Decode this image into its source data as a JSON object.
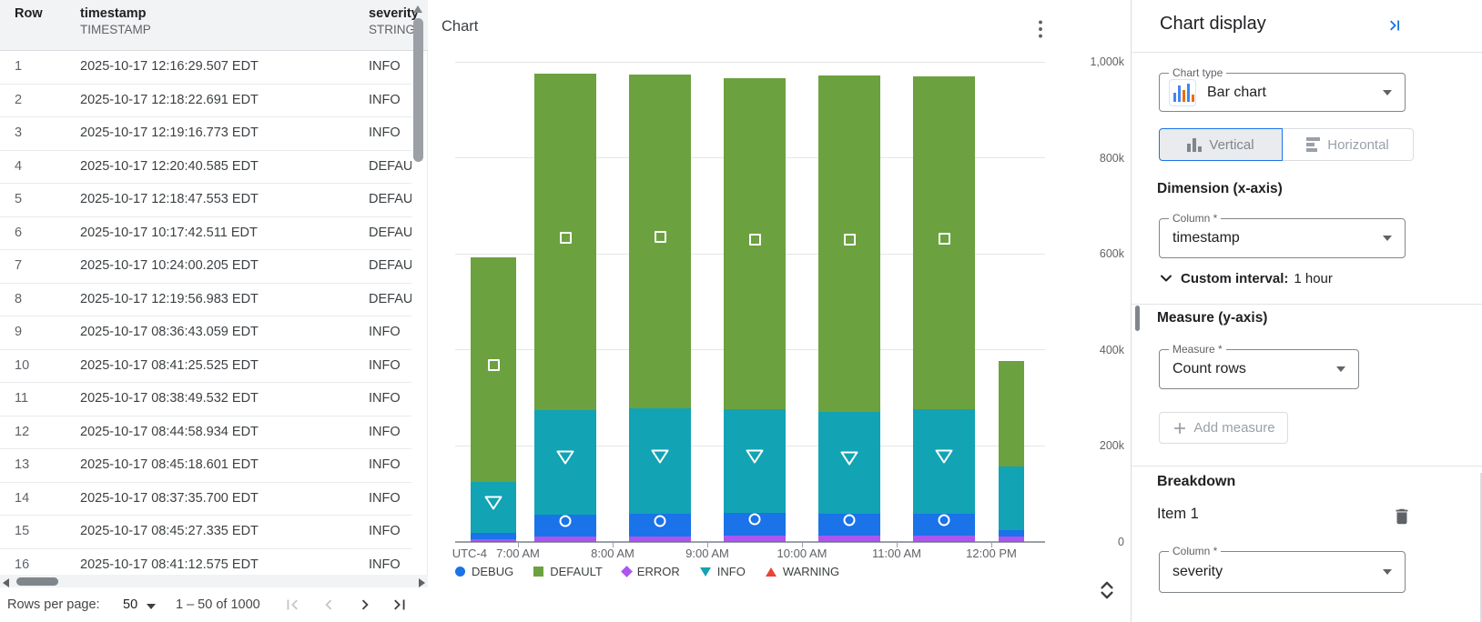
{
  "table": {
    "columns": [
      {
        "name": "Row",
        "type": ""
      },
      {
        "name": "timestamp",
        "type": "TIMESTAMP"
      },
      {
        "name": "severity",
        "type": "STRING"
      }
    ],
    "rows": [
      [
        "1",
        "2025-10-17 12:16:29.507 EDT",
        "INFO"
      ],
      [
        "2",
        "2025-10-17 12:18:22.691 EDT",
        "INFO"
      ],
      [
        "3",
        "2025-10-17 12:19:16.773 EDT",
        "INFO"
      ],
      [
        "4",
        "2025-10-17 12:20:40.585 EDT",
        "DEFAULT"
      ],
      [
        "5",
        "2025-10-17 12:18:47.553 EDT",
        "DEFAULT"
      ],
      [
        "6",
        "2025-10-17 10:17:42.511 EDT",
        "DEFAULT"
      ],
      [
        "7",
        "2025-10-17 10:24:00.205 EDT",
        "DEFAULT"
      ],
      [
        "8",
        "2025-10-17 12:19:56.983 EDT",
        "DEFAULT"
      ],
      [
        "9",
        "2025-10-17 08:36:43.059 EDT",
        "INFO"
      ],
      [
        "10",
        "2025-10-17 08:41:25.525 EDT",
        "INFO"
      ],
      [
        "11",
        "2025-10-17 08:38:49.532 EDT",
        "INFO"
      ],
      [
        "12",
        "2025-10-17 08:44:58.934 EDT",
        "INFO"
      ],
      [
        "13",
        "2025-10-17 08:45:18.601 EDT",
        "INFO"
      ],
      [
        "14",
        "2025-10-17 08:37:35.700 EDT",
        "INFO"
      ],
      [
        "15",
        "2025-10-17 08:45:27.335 EDT",
        "INFO"
      ],
      [
        "16",
        "2025-10-17 08:41:12.575 EDT",
        "INFO"
      ]
    ],
    "pagination": {
      "rows_per_page_label": "Rows per page:",
      "rows_per_page_value": "50",
      "range_label": "1 – 50 of 1000"
    }
  },
  "chart_panel": {
    "title": "Chart",
    "menu_icon": "kebab-vertical-dots",
    "unfold_icon": "chevron-up-down"
  },
  "chart_data": {
    "type": "bar",
    "stacked": true,
    "title": "Chart",
    "xlabel": "",
    "ylabel": "",
    "y_unit": "thousands of rows (k)",
    "ylim_k": [
      0,
      1000
    ],
    "y_tick_labels": [
      "1,000k",
      "800k",
      "600k",
      "400k",
      "200k",
      "0"
    ],
    "y_tick_values_k": [
      1000,
      800,
      600,
      400,
      200,
      0
    ],
    "timezone_label": "UTC-4",
    "x_tick_labels": [
      "7:00 AM",
      "8:00 AM",
      "9:00 AM",
      "10:00 AM",
      "11:00 AM",
      "12:00 PM"
    ],
    "categories": [
      "6:00 AM",
      "7:00 AM",
      "8:00 AM",
      "9:00 AM",
      "10:00 AM",
      "11:00 AM",
      "12:00 PM"
    ],
    "grid": true,
    "legend_position": "bottom",
    "stack_order_bottom_to_top": [
      "WARNING",
      "ERROR",
      "DEBUG",
      "INFO",
      "DEFAULT"
    ],
    "series": [
      {
        "name": "DEBUG",
        "color": "#1a73e8",
        "legend_shape": "circle",
        "marker": "circle",
        "values_k": [
          13,
          45,
          46,
          48,
          46,
          45,
          13
        ]
      },
      {
        "name": "DEFAULT",
        "color": "#6ca13f",
        "legend_shape": "square",
        "marker": "square",
        "values_k": [
          468,
          700,
          695,
          690,
          700,
          692,
          220
        ]
      },
      {
        "name": "ERROR",
        "color": "#ab56ee",
        "legend_shape": "diamond",
        "marker": null,
        "values_k": [
          4,
          10,
          10,
          11,
          11,
          12,
          9
        ]
      },
      {
        "name": "INFO",
        "color": "#12a3b4",
        "legend_shape": "triangle-down",
        "marker": "triangle-down",
        "values_k": [
          106,
          218,
          220,
          215,
          212,
          218,
          133
        ]
      },
      {
        "name": "WARNING",
        "color": "#ea4335",
        "legend_shape": "triangle-up",
        "marker": null,
        "values_k": [
          2,
          2,
          2,
          2,
          2,
          2,
          2
        ]
      }
    ],
    "bar_markers": [
      [
        "DEFAULT",
        "INFO"
      ],
      [
        "DEFAULT",
        "INFO",
        "DEBUG"
      ],
      [
        "DEFAULT",
        "INFO",
        "DEBUG"
      ],
      [
        "DEFAULT",
        "INFO",
        "DEBUG"
      ],
      [
        "DEFAULT",
        "INFO",
        "DEBUG"
      ],
      [
        "DEFAULT",
        "INFO",
        "DEBUG"
      ],
      []
    ]
  },
  "settings": {
    "title": "Chart display",
    "collapse_icon": "arrow-to-bar-right",
    "chart_type": {
      "label": "Chart type",
      "value": "Bar chart",
      "icon": "mini-bar-chart"
    },
    "orientation": {
      "vertical_label": "Vertical",
      "horizontal_label": "Horizontal",
      "selected": "Vertical"
    },
    "dimension": {
      "heading": "Dimension (x-axis)",
      "column_label": "Column *",
      "column_value": "timestamp",
      "custom_interval_label": "Custom interval:",
      "custom_interval_value": "1 hour"
    },
    "measure": {
      "heading": "Measure (y-axis)",
      "measure_label": "Measure *",
      "measure_value": "Count rows",
      "add_measure_label": "Add measure"
    },
    "breakdown": {
      "heading": "Breakdown",
      "item_label": "Item 1",
      "column_label": "Column *",
      "column_value": "severity",
      "delete_icon": "trash"
    },
    "accent_color": "#1a73e8"
  }
}
